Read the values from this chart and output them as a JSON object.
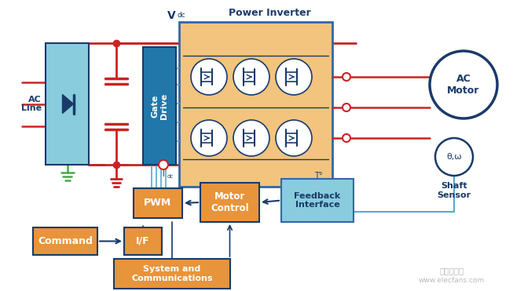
{
  "bg_color": "#ffffff",
  "colors": {
    "red": "#cc2222",
    "cyan": "#55aacc",
    "light_blue": "#88ccdd",
    "teal": "#2277aa",
    "orange": "#e8943a",
    "peach": "#f2c47e",
    "navy": "#1a3a6a",
    "green": "#44aa44",
    "white": "#ffffff",
    "blue_border": "#3366aa"
  },
  "labels": {
    "ac_line": "AC\nLine",
    "gate_drive": "Gate\nDrive",
    "power_inverter": "Power Inverter",
    "vdc": "V",
    "vdc_sub": "dc",
    "idc": "I",
    "idc_sub": "dc",
    "T0": "T°",
    "ac_motor": "AC\nMotor",
    "theta_omega": "θ,ω",
    "shaft_sensor": "Shaft\nSensor",
    "pwm": "PWM",
    "motor_control": "Motor\nControl",
    "feedback": "Feedback\nInterface",
    "command": "Command",
    "if_label": "I/F",
    "system_comm": "System and\nCommunications"
  }
}
